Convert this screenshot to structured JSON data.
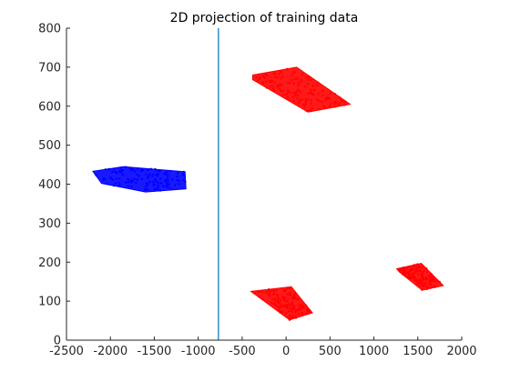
{
  "colors": {
    "class_a": "#0000ff",
    "class_b": "#ff0000",
    "boundary": "#0072bd",
    "axes": "#262626",
    "background": "#ffffff"
  },
  "chart_data": {
    "type": "scatter",
    "title": "2D projection of training data",
    "xlabel": "",
    "ylabel": "",
    "xlim": [
      -2500,
      2000
    ],
    "ylim": [
      0,
      800
    ],
    "xticks": [
      -2500,
      -2000,
      -1500,
      -1000,
      -500,
      0,
      500,
      1000,
      1500,
      2000
    ],
    "yticks": [
      0,
      100,
      200,
      300,
      400,
      500,
      600,
      700,
      800
    ],
    "xtick_labels": [
      "-2500",
      "-2000",
      "-1500",
      "-1000",
      "-500",
      "0",
      "500",
      "1000",
      "1500",
      "2000"
    ],
    "ytick_labels": [
      "0",
      "100",
      "200",
      "300",
      "400",
      "500",
      "600",
      "700",
      "800"
    ],
    "grid": false,
    "legend": "none",
    "series": [
      {
        "color": "#0000ff",
        "clusters": [
          {
            "polygon": [
              [
                -2200,
                433
              ],
              [
                -1850,
                445
              ],
              [
                -1150,
                432
              ],
              [
                -1140,
                388
              ],
              [
                -1600,
                380
              ],
              [
                -2100,
                402
              ]
            ]
          }
        ]
      },
      {
        "color": "#ff0000",
        "clusters": [
          {
            "polygon": [
              [
                -380,
                680
              ],
              [
                120,
                700
              ],
              [
                730,
                605
              ],
              [
                250,
                585
              ],
              [
                -380,
                668
              ]
            ]
          },
          {
            "polygon": [
              [
                -400,
                125
              ],
              [
                60,
                137
              ],
              [
                300,
                70
              ],
              [
                40,
                52
              ]
            ]
          },
          {
            "polygon": [
              [
                1260,
                183
              ],
              [
                1540,
                197
              ],
              [
                1790,
                140
              ],
              [
                1550,
                128
              ],
              [
                1290,
                175
              ]
            ]
          }
        ]
      }
    ],
    "reference_lines": [
      {
        "orientation": "vertical",
        "x": -770,
        "color": "#0072bd"
      }
    ]
  }
}
